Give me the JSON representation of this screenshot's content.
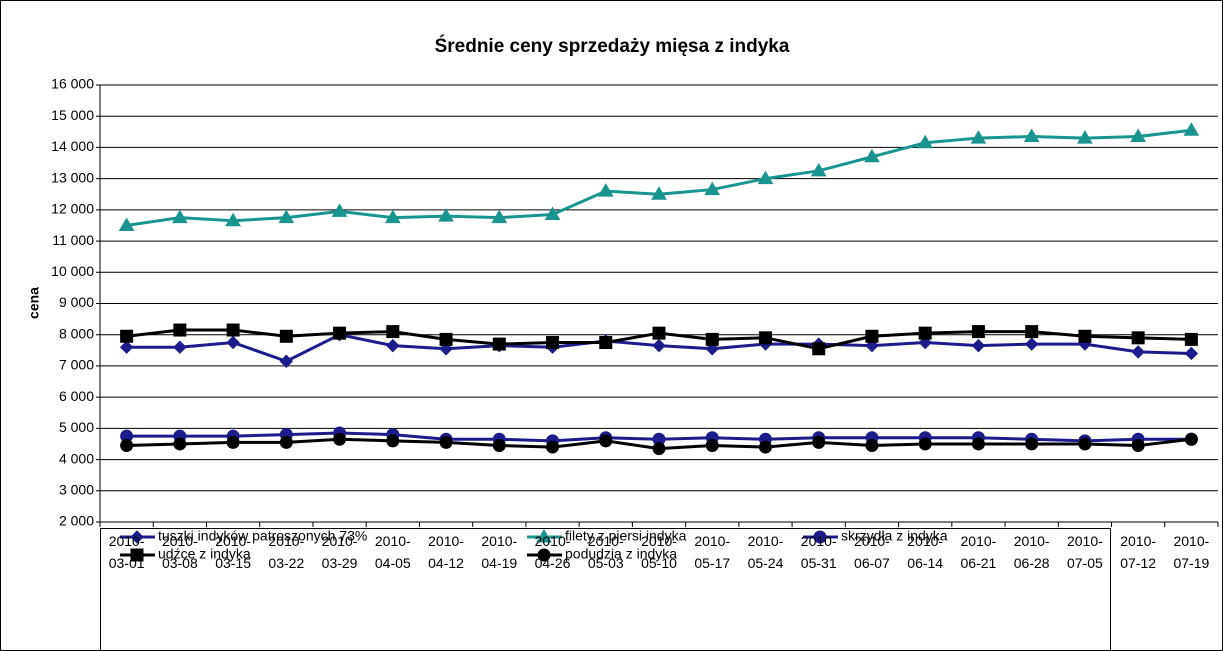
{
  "chart_data": {
    "type": "line",
    "title": "Średnie ceny sprzedaży mięsa z indyka",
    "y_label": "cena",
    "categories": [
      "2010-03-01",
      "2010-03-08",
      "2010-03-15",
      "2010-03-22",
      "2010-03-29",
      "2010-04-05",
      "2010-04-12",
      "2010-04-19",
      "2010-04-26",
      "2010-05-03",
      "2010-05-10",
      "2010-05-17",
      "2010-05-24",
      "2010-05-31",
      "2010-06-07",
      "2010-06-14",
      "2010-06-21",
      "2010-06-28",
      "2010-07-05",
      "2010-07-12",
      "2010-07-19"
    ],
    "ylim": [
      2000,
      16000
    ],
    "yticks": [
      {
        "value": 2000,
        "label": "2 000"
      },
      {
        "value": 3000,
        "label": "3 000"
      },
      {
        "value": 4000,
        "label": "4 000"
      },
      {
        "value": 5000,
        "label": "5 000"
      },
      {
        "value": 6000,
        "label": "6 000"
      },
      {
        "value": 7000,
        "label": "7 000"
      },
      {
        "value": 8000,
        "label": "8 000"
      },
      {
        "value": 9000,
        "label": "9 000"
      },
      {
        "value": 10000,
        "label": "10 000"
      },
      {
        "value": 11000,
        "label": "11 000"
      },
      {
        "value": 12000,
        "label": "12 000"
      },
      {
        "value": 13000,
        "label": "13 000"
      },
      {
        "value": 14000,
        "label": "14 000"
      },
      {
        "value": 15000,
        "label": "15 000"
      },
      {
        "value": 16000,
        "label": "16 000"
      }
    ],
    "grid": true,
    "series": [
      {
        "name": "tuszki indyków patroszonych 73%",
        "color": "#1c1c8c",
        "marker": "diamond",
        "values": [
          7600,
          7600,
          7750,
          7150,
          8000,
          7650,
          7550,
          7650,
          7600,
          7800,
          7650,
          7550,
          7700,
          7700,
          7650,
          7750,
          7650,
          7700,
          7700,
          7450,
          7400
        ]
      },
      {
        "name": "filety z piersi indyka",
        "color": "#1a948e",
        "marker": "triangle",
        "values": [
          11500,
          11750,
          11650,
          11750,
          11950,
          11750,
          11800,
          11750,
          11850,
          12600,
          12500,
          12650,
          13000,
          13250,
          13700,
          14150,
          14300,
          14350,
          14300,
          14350,
          14550
        ]
      },
      {
        "name": "skrzydła z indyka",
        "color": "#1c1c8c",
        "marker": "circle",
        "values": [
          4750,
          4750,
          4750,
          4800,
          4850,
          4800,
          4650,
          4650,
          4600,
          4700,
          4650,
          4700,
          4650,
          4700,
          4700,
          4700,
          4700,
          4650,
          4600,
          4650,
          4650
        ]
      },
      {
        "name": "udźce z indyka",
        "color": "#000000",
        "marker": "square",
        "values": [
          7950,
          8150,
          8150,
          7950,
          8050,
          8100,
          7850,
          7700,
          7750,
          7750,
          8050,
          7850,
          7900,
          7550,
          7950,
          8050,
          8100,
          8100,
          7950,
          7900,
          7850
        ]
      },
      {
        "name": "podudzia z indyka",
        "color": "#000000",
        "marker": "circle",
        "values": [
          4450,
          4500,
          4550,
          4550,
          4650,
          4600,
          4550,
          4450,
          4400,
          4600,
          4350,
          4450,
          4400,
          4550,
          4450,
          4500,
          4500,
          4500,
          4500,
          4450,
          4650
        ]
      }
    ]
  }
}
